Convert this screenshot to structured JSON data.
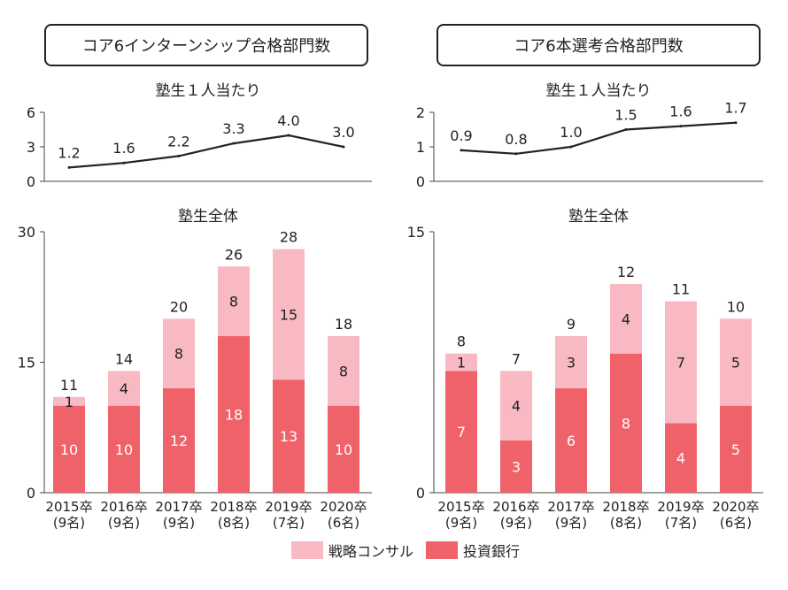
{
  "headers": {
    "left": "コア6インターンシップ合格部門数",
    "right": "コア6本選考合格部門数"
  },
  "legend": [
    {
      "label": "戦略コンサル",
      "color": "#f8b9c3"
    },
    {
      "label": "投資銀行",
      "color": "#f0626a"
    }
  ],
  "chart_data": [
    {
      "type": "line",
      "panel": "left",
      "title": "塾生１人当たり",
      "categories": [
        "2015卒",
        "2016卒",
        "2017卒",
        "2018卒",
        "2019卒",
        "2020卒"
      ],
      "values": [
        1.2,
        1.6,
        2.2,
        3.3,
        4.0,
        3.0
      ],
      "value_labels": [
        "1.2",
        "1.6",
        "2.2",
        "3.3",
        "4.0",
        "3.0"
      ],
      "ylim": [
        0,
        6
      ],
      "yticks": [
        "0",
        "3",
        "6"
      ],
      "line_color": "#222222"
    },
    {
      "type": "bar",
      "stacked": true,
      "panel": "left",
      "title": "塾生全体",
      "categories": [
        "2015卒",
        "2016卒",
        "2017卒",
        "2018卒",
        "2019卒",
        "2020卒"
      ],
      "category_sub": [
        "(9名)",
        "(9名)",
        "(9名)",
        "(8名)",
        "(7名)",
        "(6名)"
      ],
      "series": [
        {
          "name": "投資銀行",
          "values": [
            10,
            10,
            12,
            18,
            13,
            10
          ],
          "color": "#f0626a"
        },
        {
          "name": "戦略コンサル",
          "values": [
            1,
            4,
            8,
            8,
            15,
            8
          ],
          "color": "#f8b9c3"
        }
      ],
      "totals": [
        11,
        14,
        20,
        26,
        28,
        18
      ],
      "ylim": [
        0,
        30
      ],
      "yticks": [
        "0",
        "15",
        "30"
      ]
    },
    {
      "type": "line",
      "panel": "right",
      "title": "塾生１人当たり",
      "categories": [
        "2015卒",
        "2016卒",
        "2017卒",
        "2018卒",
        "2019卒",
        "2020卒"
      ],
      "values": [
        0.9,
        0.8,
        1.0,
        1.5,
        1.6,
        1.7
      ],
      "value_labels": [
        "0.9",
        "0.8",
        "1.0",
        "1.5",
        "1.6",
        "1.7"
      ],
      "ylim": [
        0,
        2
      ],
      "yticks": [
        "0",
        "1",
        "2"
      ],
      "line_color": "#222222"
    },
    {
      "type": "bar",
      "stacked": true,
      "panel": "right",
      "title": "塾生全体",
      "categories": [
        "2015卒",
        "2016卒",
        "2017卒",
        "2018卒",
        "2019卒",
        "2020卒"
      ],
      "category_sub": [
        "(9名)",
        "(9名)",
        "(9名)",
        "(8名)",
        "(7名)",
        "(6名)"
      ],
      "series": [
        {
          "name": "投資銀行",
          "values": [
            7,
            3,
            6,
            8,
            4,
            5
          ],
          "color": "#f0626a"
        },
        {
          "name": "戦略コンサル",
          "values": [
            1,
            4,
            3,
            4,
            7,
            5
          ],
          "color": "#f8b9c3"
        }
      ],
      "totals": [
        8,
        7,
        9,
        12,
        11,
        10
      ],
      "ylim": [
        0,
        15
      ],
      "yticks": [
        "0",
        "15"
      ]
    }
  ]
}
